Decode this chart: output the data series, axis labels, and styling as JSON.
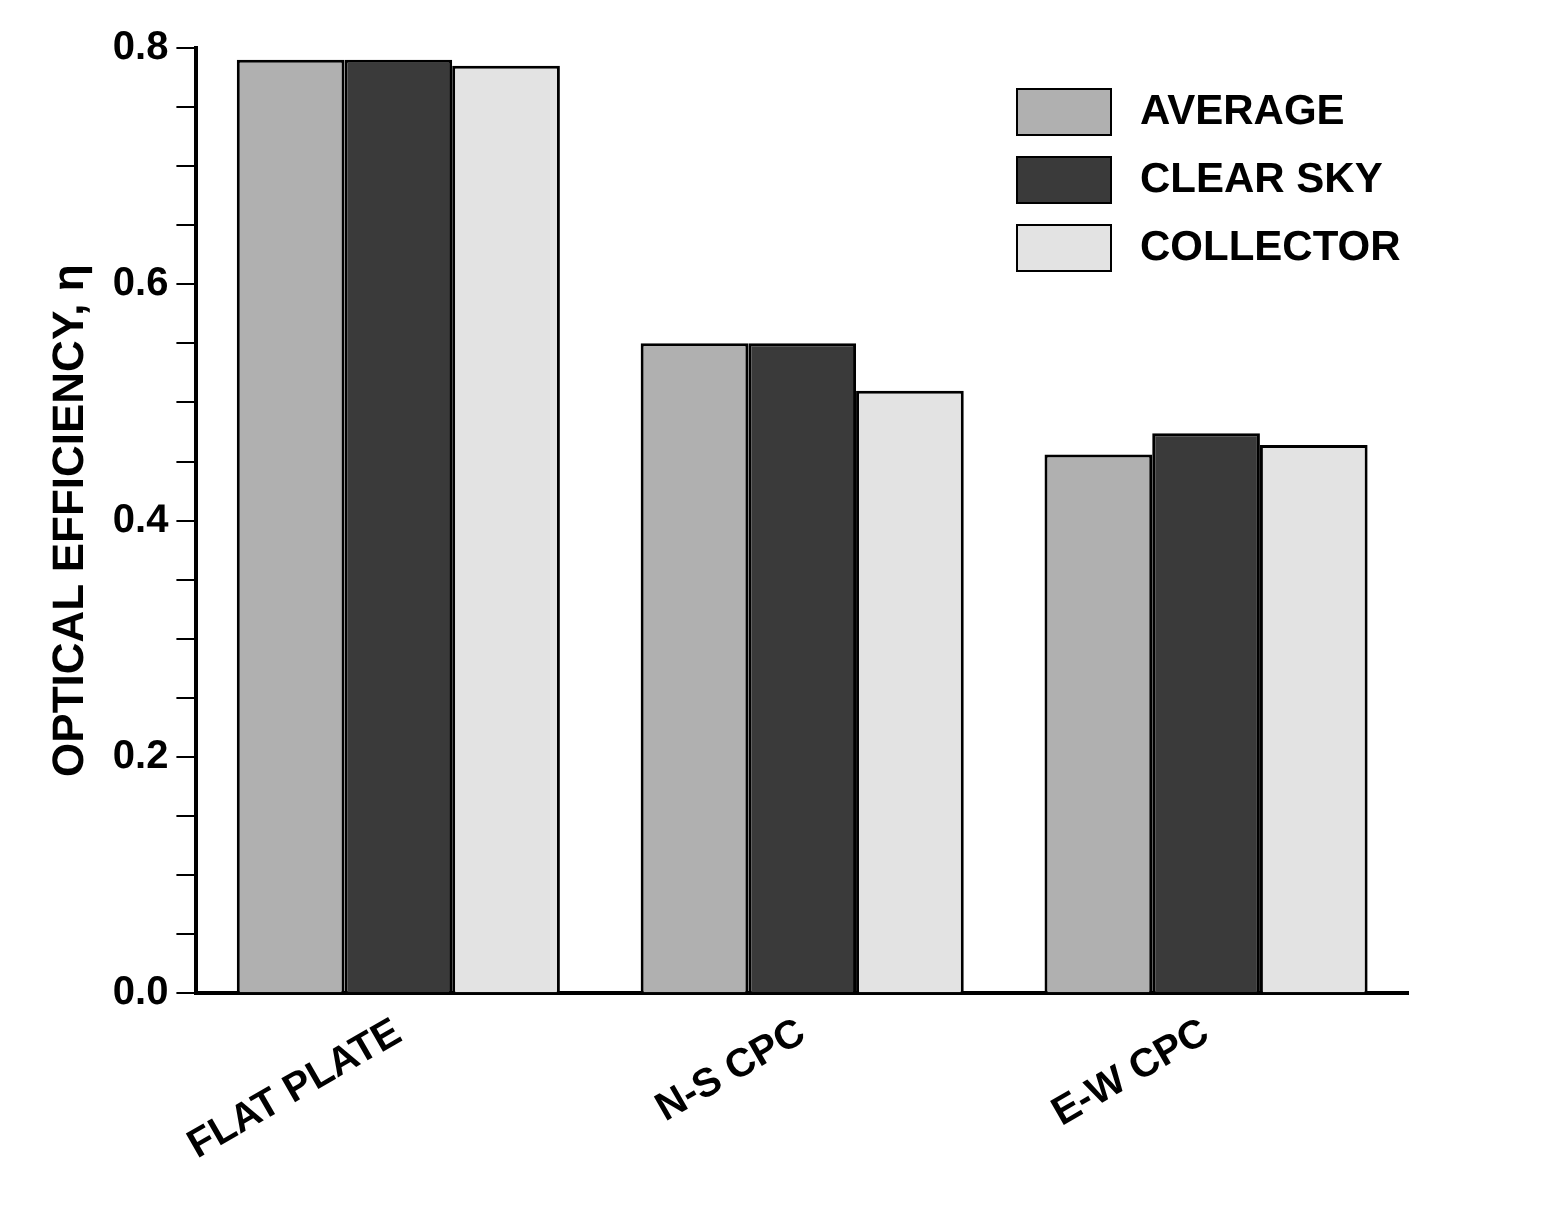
{
  "chart_data": {
    "type": "bar",
    "ylabel": "OPTICAL EFFICIENCY, η",
    "categories": [
      "FLAT PLATE",
      "N-S CPC",
      "E-W CPC"
    ],
    "series": [
      {
        "name": "AVERAGE",
        "color": "#b0b0b0",
        "values": [
          0.79,
          0.55,
          0.456
        ]
      },
      {
        "name": "CLEAR SKY",
        "color": "#3a3a3a",
        "values": [
          0.79,
          0.55,
          0.474
        ]
      },
      {
        "name": "COLLECTOR",
        "color": "#e3e3e3",
        "values": [
          0.785,
          0.51,
          0.464
        ]
      }
    ],
    "ylim": [
      0,
      0.8
    ],
    "yticks": [
      {
        "value": 0,
        "label": "0.0"
      },
      {
        "value": 0.05,
        "label": null
      },
      {
        "value": 0.1,
        "label": null
      },
      {
        "value": 0.15,
        "label": null
      },
      {
        "value": 0.2,
        "label": "0.2"
      },
      {
        "value": 0.25,
        "label": null
      },
      {
        "value": 0.3,
        "label": null
      },
      {
        "value": 0.35,
        "label": null
      },
      {
        "value": 0.4,
        "label": "0.4"
      },
      {
        "value": 0.45,
        "label": null
      },
      {
        "value": 0.5,
        "label": null
      },
      {
        "value": 0.55,
        "label": null
      },
      {
        "value": 0.6,
        "label": "0.6"
      },
      {
        "value": 0.65,
        "label": null
      },
      {
        "value": 0.7,
        "label": null
      },
      {
        "value": 0.75,
        "label": null
      },
      {
        "value": 0.8,
        "label": "0.8"
      }
    ],
    "grid": false,
    "legend": "top right"
  }
}
